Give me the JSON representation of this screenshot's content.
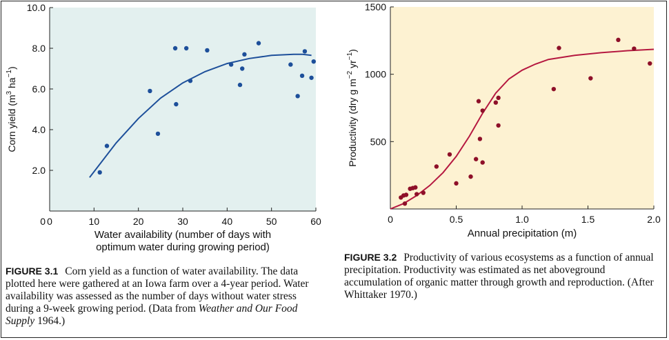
{
  "chart_data": [
    {
      "type": "scatter",
      "figure": "corn-yield",
      "ylabel_parts": [
        "Corn yield (m",
        "3",
        " ha",
        "−1",
        ")"
      ],
      "xlabel_lines": [
        "Water availability (number of days with",
        "optimum water during growing period)"
      ],
      "xlim": [
        0,
        60
      ],
      "ylim": [
        0,
        10
      ],
      "x_ticks": [
        0,
        10,
        20,
        30,
        40,
        50,
        60
      ],
      "x_tick_labels": [
        "0",
        "10",
        "20",
        "30",
        "40",
        "50",
        "60"
      ],
      "y_ticks": [
        2,
        4,
        6,
        8,
        10
      ],
      "y_tick_labels": [
        "2.0",
        "4.0",
        "6.0",
        "8.0",
        "10.0"
      ],
      "y_zero_label": "0",
      "grid": false,
      "background_color": "#e3f0ef",
      "point_color": "#1d4f9a",
      "curve_color": "#1d4f9a",
      "points": [
        [
          11.3,
          1.9
        ],
        [
          12.9,
          3.2
        ],
        [
          22.6,
          5.9
        ],
        [
          24.4,
          3.8
        ],
        [
          28.3,
          8.0
        ],
        [
          28.5,
          5.25
        ],
        [
          30.8,
          8.0
        ],
        [
          31.7,
          6.4
        ],
        [
          35.5,
          7.9
        ],
        [
          40.9,
          7.2
        ],
        [
          42.9,
          6.2
        ],
        [
          43.4,
          7.0
        ],
        [
          43.9,
          7.7
        ],
        [
          47.1,
          8.25
        ],
        [
          54.3,
          7.2
        ],
        [
          55.9,
          5.65
        ],
        [
          56.9,
          6.65
        ],
        [
          57.5,
          7.85
        ],
        [
          59.0,
          6.55
        ],
        [
          59.5,
          7.35
        ]
      ],
      "curve": [
        [
          9.0,
          1.65
        ],
        [
          15.0,
          3.35
        ],
        [
          20.0,
          4.55
        ],
        [
          25.0,
          5.55
        ],
        [
          30.0,
          6.3
        ],
        [
          35.0,
          6.85
        ],
        [
          40.0,
          7.25
        ],
        [
          45.0,
          7.5
        ],
        [
          50.0,
          7.65
        ],
        [
          55.0,
          7.7
        ],
        [
          57.0,
          7.7
        ],
        [
          59.0,
          7.65
        ]
      ]
    },
    {
      "type": "scatter",
      "figure": "productivity",
      "ylabel_parts": [
        "Productivity (dry g m",
        "−2",
        " yr",
        "−1",
        ")"
      ],
      "xlabel": "Annual precipitation (m)",
      "xlim": [
        0,
        2.0
      ],
      "ylim": [
        0,
        1500
      ],
      "x_ticks": [
        0,
        0.5,
        1.0,
        1.5,
        2.0
      ],
      "x_tick_labels": [
        "0",
        "0.5",
        "1.0",
        "1.5",
        "2.0"
      ],
      "y_ticks": [
        500,
        1000,
        1500
      ],
      "y_tick_labels": [
        "500",
        "1000",
        "1500"
      ],
      "grid": false,
      "background_color": "#fdf2d2",
      "point_color": "#8e1029",
      "curve_color": "#b51840",
      "points": [
        [
          0.08,
          85
        ],
        [
          0.1,
          100
        ],
        [
          0.11,
          40
        ],
        [
          0.12,
          105
        ],
        [
          0.15,
          150
        ],
        [
          0.17,
          155
        ],
        [
          0.19,
          160
        ],
        [
          0.2,
          110
        ],
        [
          0.25,
          120
        ],
        [
          0.35,
          315
        ],
        [
          0.45,
          405
        ],
        [
          0.5,
          190
        ],
        [
          0.61,
          240
        ],
        [
          0.65,
          370
        ],
        [
          0.67,
          800
        ],
        [
          0.68,
          520
        ],
        [
          0.7,
          345
        ],
        [
          0.7,
          730
        ],
        [
          0.8,
          790
        ],
        [
          0.82,
          825
        ],
        [
          0.82,
          620
        ],
        [
          1.24,
          890
        ],
        [
          1.28,
          1195
        ],
        [
          1.52,
          970
        ],
        [
          1.73,
          1255
        ],
        [
          1.85,
          1190
        ],
        [
          1.97,
          1080
        ]
      ],
      "curve": [
        [
          0.0,
          0
        ],
        [
          0.1,
          40
        ],
        [
          0.2,
          100
        ],
        [
          0.3,
          175
        ],
        [
          0.4,
          270
        ],
        [
          0.5,
          390
        ],
        [
          0.6,
          540
        ],
        [
          0.7,
          710
        ],
        [
          0.8,
          860
        ],
        [
          0.9,
          965
        ],
        [
          1.0,
          1030
        ],
        [
          1.1,
          1075
        ],
        [
          1.2,
          1110
        ],
        [
          1.4,
          1140
        ],
        [
          1.6,
          1160
        ],
        [
          1.8,
          1175
        ],
        [
          2.0,
          1185
        ]
      ]
    }
  ],
  "captions": {
    "fig1": {
      "label": "FIGURE 3.1",
      "text_before": "Corn yield as a function of water availability. The data plotted here were gathered at an Iowa farm over a 4-year period. Water availability was assessed as the number of days without water stress during a 9-week growing period. (Data from ",
      "source_italic": "Weather and Our Food Supply",
      "text_after": " 1964.)"
    },
    "fig2": {
      "label": "FIGURE 3.2",
      "text": "Productivity of various ecosystems as a function of annual precipitation. Productivity was estimated as net aboveground accumulation of organic matter through growth and reproduction. (After Whittaker 1970.)"
    }
  }
}
